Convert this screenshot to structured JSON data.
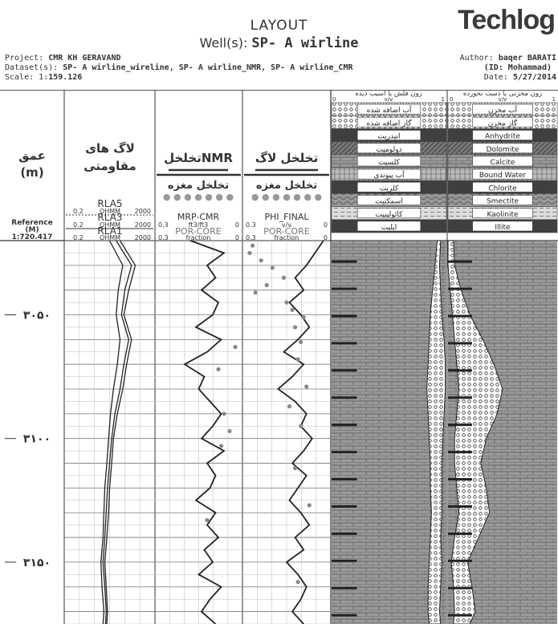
{
  "header": {
    "layout_title": "LAYOUT",
    "well_label": "Well(s): ",
    "well_name": "SP- A wirline",
    "brand": "Techlog",
    "project_label": "Project: ",
    "project": "CMR KH GERAVAND",
    "dataset_label": "Dataset(s): ",
    "datasets": "SP- A wirline_wireline, SP- A wirline_NMR, SP- A wirline_CMR",
    "scale_label": "Scale: 1:",
    "scale": "159.126",
    "author_label": "Author: ",
    "author": "baqer BARATI",
    "id_text": "(ID: Mohammad)",
    "date_label": "Date: ",
    "date": "5/27/2014"
  },
  "tracks": {
    "depth": {
      "title_line1": "عمق",
      "title_line2": "(m)",
      "reference_label": "Reference",
      "reference_unit": "(M)",
      "reference_value": "1:720.417"
    },
    "resistivity": {
      "title_line1": "لاگ های",
      "title_line2": "مقاومتی",
      "curves": [
        {
          "name": "RLA5",
          "min": "0.2",
          "unit": "OHMM",
          "max": "2000"
        },
        {
          "name": "RLA3",
          "min": "0.2",
          "unit": "OHMM",
          "max": "2000"
        },
        {
          "name": "RLA1",
          "min": "0.2",
          "unit": "OHMM",
          "max": "2000"
        }
      ]
    },
    "nmr": {
      "title": "تخلخلNMR",
      "subtitle": "تخلخل مغزه",
      "curves": [
        {
          "name": "MRP-CMR",
          "min": "0.3",
          "unit": "ft3/ft3",
          "max": "0"
        },
        {
          "name": "POR-CORE",
          "min": "0.3",
          "unit": "fraction",
          "max": "0"
        }
      ]
    },
    "log_porosity": {
      "title": "تخلخل لاگ",
      "subtitle": "تخلخل مغزه",
      "curves": [
        {
          "name": "PHI_FINAL",
          "min": "0.3",
          "unit": "v/v",
          "max": "0"
        },
        {
          "name": "POR-CORE",
          "min": "0.3",
          "unit": "fraction",
          "max": "0"
        }
      ]
    },
    "lithology_left": {
      "header": "زون فلش یا آسیب دیده",
      "scale_min": "0",
      "scale_unit": "v/v",
      "scale_max": "1",
      "legend": [
        "آب اضافه شده",
        "گاز اضافه شده",
        "انیدریت",
        "دولومیت",
        "کلسیت",
        "آب پیوندی",
        "کلریت",
        "اسمکتیت",
        "کائولینیت",
        "ایلیت"
      ]
    },
    "lithology_right": {
      "header": "زون مخزنی یا دست نخورده",
      "scale_min": "0",
      "scale_unit": "v/v",
      "scale_max": "1",
      "legend": [
        "آب مخزن",
        "گاز مخزن",
        "Anhydrite",
        "Dolomite",
        "Calcite",
        "Bound Water",
        "Chlorite",
        "Smectite",
        "Kaolinite",
        "Illite"
      ]
    }
  },
  "chart_data": {
    "type": "line",
    "depth_unit": "m",
    "depth_range": [
      3020,
      3175
    ],
    "depth_tick_labels": [
      "۳۰۵۰",
      "۳۱۰۰",
      "۳۱۵۰"
    ],
    "depth_ticks": [
      3050,
      3100,
      3150
    ],
    "grid": true,
    "series": [
      {
        "name": "RLA5",
        "track": "resistivity",
        "scale": "log",
        "range": [
          0.2,
          2000
        ],
        "depths": [
          3020,
          3030,
          3040,
          3050,
          3060,
          3070,
          3080,
          3090,
          3100,
          3110,
          3120,
          3130,
          3140,
          3150,
          3160,
          3170,
          3175
        ],
        "values": [
          60,
          300,
          150,
          90,
          200,
          120,
          80,
          45,
          30,
          25,
          20,
          18,
          15,
          12,
          14,
          16,
          15
        ]
      },
      {
        "name": "RLA3",
        "track": "resistivity",
        "scale": "log",
        "range": [
          0.2,
          2000
        ],
        "depths": [
          3020,
          3030,
          3040,
          3050,
          3060,
          3070,
          3080,
          3090,
          3100,
          3110,
          3120,
          3130,
          3140,
          3150,
          3160,
          3170,
          3175
        ],
        "values": [
          40,
          200,
          100,
          70,
          150,
          90,
          60,
          35,
          25,
          20,
          16,
          14,
          12,
          10,
          12,
          14,
          13
        ]
      },
      {
        "name": "RLA1",
        "track": "resistivity",
        "scale": "log",
        "range": [
          0.2,
          2000
        ],
        "depths": [
          3020,
          3030,
          3040,
          3050,
          3060,
          3070,
          3080,
          3090,
          3100,
          3110,
          3120,
          3130,
          3140,
          3150,
          3160,
          3170,
          3175
        ],
        "values": [
          20,
          80,
          50,
          40,
          60,
          45,
          30,
          22,
          18,
          15,
          12,
          11,
          10,
          8,
          9,
          11,
          10
        ]
      },
      {
        "name": "MRP-CMR",
        "track": "nmr",
        "range": [
          0.3,
          0
        ],
        "depths": [
          3020,
          3025,
          3030,
          3035,
          3040,
          3045,
          3050,
          3055,
          3060,
          3065,
          3070,
          3075,
          3080,
          3085,
          3090,
          3095,
          3100,
          3105,
          3110,
          3115,
          3120,
          3125,
          3130,
          3135,
          3140,
          3145,
          3150,
          3155,
          3160,
          3165,
          3170,
          3175
        ],
        "values": [
          0.18,
          0.06,
          0.12,
          0.09,
          0.14,
          0.08,
          0.1,
          0.16,
          0.07,
          0.12,
          0.2,
          0.13,
          0.15,
          0.11,
          0.07,
          0.1,
          0.14,
          0.06,
          0.12,
          0.09,
          0.11,
          0.16,
          0.09,
          0.12,
          0.08,
          0.13,
          0.1,
          0.15,
          0.07,
          0.11,
          0.14,
          0.09
        ]
      },
      {
        "name": "PHI_FINAL",
        "track": "log_porosity",
        "range": [
          0.3,
          0
        ],
        "depths": [
          3020,
          3025,
          3030,
          3035,
          3040,
          3045,
          3050,
          3055,
          3060,
          3065,
          3070,
          3075,
          3080,
          3085,
          3090,
          3095,
          3100,
          3105,
          3110,
          3115,
          3120,
          3125,
          3130,
          3135,
          3140,
          3145,
          3150,
          3155,
          3160,
          3165,
          3170,
          3175
        ],
        "values": [
          0.02,
          0.05,
          0.08,
          0.12,
          0.09,
          0.14,
          0.1,
          0.07,
          0.11,
          0.16,
          0.09,
          0.13,
          0.18,
          0.12,
          0.08,
          0.1,
          0.06,
          0.09,
          0.13,
          0.08,
          0.11,
          0.14,
          0.1,
          0.07,
          0.12,
          0.09,
          0.15,
          0.11,
          0.08,
          0.1,
          0.13,
          0.09
        ]
      },
      {
        "name": "POR-CORE (NMR track)",
        "track": "nmr",
        "kind": "points",
        "range": [
          0.3,
          0
        ],
        "depths": [
          3063,
          3072,
          3090,
          3097,
          3103,
          3133
        ],
        "values": [
          0.02,
          0.08,
          0.06,
          0.04,
          0.07,
          0.12
        ]
      },
      {
        "name": "POR-CORE (log track)",
        "track": "log_porosity",
        "kind": "points",
        "range": [
          0.3,
          0
        ],
        "depths": [
          3022,
          3025,
          3028,
          3031,
          3035,
          3038,
          3041,
          3045,
          3048,
          3051,
          3055,
          3061,
          3068,
          3079,
          3087,
          3095,
          3112,
          3127,
          3158
        ],
        "values": [
          0.27,
          0.28,
          0.24,
          0.2,
          0.16,
          0.22,
          0.26,
          0.15,
          0.13,
          0.09,
          0.12,
          0.1,
          0.11,
          0.08,
          0.14,
          0.1,
          0.12,
          0.07,
          0.11
        ]
      }
    ],
    "lithology_flushed_fraction": {
      "depths": [
        3020,
        3030,
        3040,
        3050,
        3060,
        3070,
        3080,
        3090,
        3100,
        3110,
        3120,
        3130,
        3140,
        3150,
        3160,
        3170,
        3175
      ],
      "gas_from": [
        0.92,
        0.9,
        0.88,
        0.86,
        0.85,
        0.84,
        0.83,
        0.84,
        0.85,
        0.86,
        0.86,
        0.87,
        0.86,
        0.85,
        0.84,
        0.84,
        0.85
      ],
      "gas_to": [
        0.95,
        0.94,
        0.95,
        0.96,
        0.98,
        0.99,
        0.99,
        0.98,
        0.97,
        0.96,
        0.96,
        0.96,
        0.95,
        0.96,
        0.95,
        0.94,
        0.95
      ]
    },
    "lithology_reservoir_fraction": {
      "depths": [
        3020,
        3030,
        3040,
        3050,
        3060,
        3070,
        3080,
        3090,
        3100,
        3110,
        3120,
        3130,
        3140,
        3150,
        3160,
        3170,
        3175
      ],
      "gas_from": [
        0.0,
        0.0,
        0.02,
        0.04,
        0.06,
        0.08,
        0.1,
        0.08,
        0.06,
        0.06,
        0.08,
        0.1,
        0.06,
        0.03,
        0.05,
        0.06,
        0.05
      ],
      "gas_to": [
        0.05,
        0.06,
        0.12,
        0.2,
        0.32,
        0.42,
        0.5,
        0.45,
        0.35,
        0.3,
        0.35,
        0.38,
        0.28,
        0.18,
        0.22,
        0.25,
        0.2
      ]
    }
  }
}
